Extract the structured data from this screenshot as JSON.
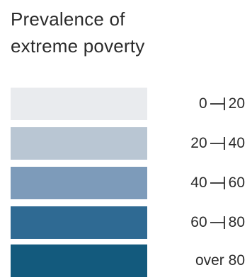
{
  "legend": {
    "title_line1": "Prevalence of",
    "title_line2": "extreme poverty",
    "bins": [
      {
        "low": "0",
        "high": "20",
        "label": "",
        "color": "#e9ebee"
      },
      {
        "low": "20",
        "high": "40",
        "label": "",
        "color": "#b9c6d3"
      },
      {
        "low": "40",
        "high": "60",
        "label": "",
        "color": "#7d9bba"
      },
      {
        "low": "60",
        "high": "80",
        "label": "",
        "color": "#2f6a93"
      },
      {
        "low": "",
        "high": "",
        "label": "over 80",
        "color": "#135a7d"
      }
    ]
  },
  "chart_data": {
    "type": "legend",
    "title": "Prevalence of extreme poverty",
    "categories": [
      "0 -| 20",
      "20 -| 40",
      "40 -| 60",
      "60 -| 80",
      "over 80"
    ],
    "ranges": [
      [
        0,
        20
      ],
      [
        20,
        40
      ],
      [
        40,
        60
      ],
      [
        60,
        80
      ],
      [
        80,
        null
      ]
    ],
    "colors": [
      "#e9ebee",
      "#b9c6d3",
      "#7d9bba",
      "#2f6a93",
      "#135a7d"
    ]
  }
}
